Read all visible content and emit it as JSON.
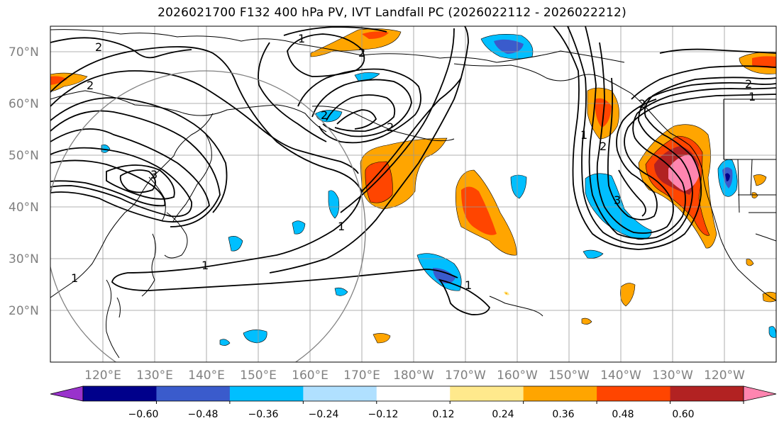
{
  "title": "2026021700 F132 400 hPa PV, IVT Landfall PC (2026022112 - 2026022212)",
  "lat_labels": [
    "70°N",
    "60°N",
    "50°N",
    "40°N",
    "30°N",
    "20°N"
  ],
  "lon_labels": [
    "120°E",
    "130°E",
    "140°E",
    "150°E",
    "160°E",
    "170°E",
    "180°W",
    "170°W",
    "160°W",
    "150°W",
    "140°W",
    "130°W",
    "120°W"
  ],
  "colorbar": {
    "colors": [
      "#9932cc",
      "#00008b",
      "#3a5bcc",
      "#00bfff",
      "#b0e0ff",
      "#ffffff",
      "#ffe98c",
      "#ffa500",
      "#ff4500",
      "#b22222",
      "#ff85b0"
    ],
    "tick_labels": [
      "−0.60",
      "−0.48",
      "−0.36",
      "−0.24",
      "−0.12",
      "0.12",
      "0.24",
      "0.36",
      "0.48",
      "0.60"
    ]
  },
  "contour_labels": [
    "2",
    "2",
    "1",
    "2",
    "2",
    "2",
    "3",
    "1",
    "1",
    "1",
    "1",
    "1",
    "2",
    "3",
    "2",
    "1",
    "2"
  ]
}
